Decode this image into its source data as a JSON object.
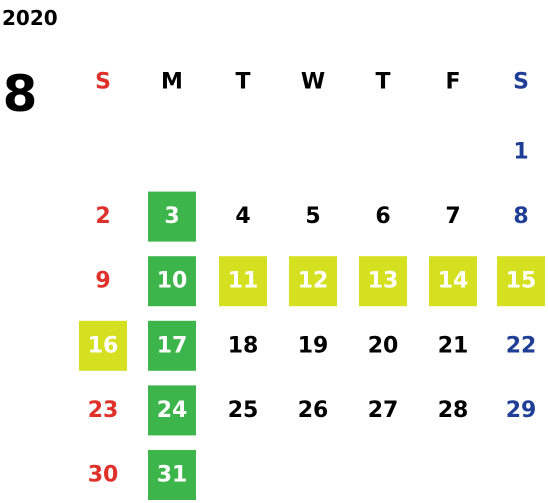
{
  "year": "2020",
  "month": "8",
  "weekdays": [
    "S",
    "M",
    "T",
    "W",
    "T",
    "F",
    "S"
  ],
  "weekday_colors": [
    "#e0302a",
    "#000000",
    "#000000",
    "#000000",
    "#000000",
    "#000000",
    "#1f3e96"
  ],
  "day_colors": [
    "#e0302a",
    "#000000",
    "#000000",
    "#000000",
    "#000000",
    "#000000",
    "#1f3e96"
  ],
  "highlight_text_color": "#ffffff",
  "weeks": [
    [
      null,
      null,
      null,
      null,
      null,
      null,
      {
        "day": 1
      }
    ],
    [
      {
        "day": 2
      },
      {
        "day": 3,
        "fill": "#3cb54a"
      },
      {
        "day": 4
      },
      {
        "day": 5
      },
      {
        "day": 6
      },
      {
        "day": 7
      },
      {
        "day": 8
      }
    ],
    [
      {
        "day": 9
      },
      {
        "day": 10,
        "fill": "#3cb54a"
      },
      {
        "day": 11,
        "fill": "#d5e021"
      },
      {
        "day": 12,
        "fill": "#d5e021"
      },
      {
        "day": 13,
        "fill": "#d5e021"
      },
      {
        "day": 14,
        "fill": "#d5e021"
      },
      {
        "day": 15,
        "fill": "#d5e021"
      }
    ],
    [
      {
        "day": 16,
        "fill": "#d5e021"
      },
      {
        "day": 17,
        "fill": "#3cb54a"
      },
      {
        "day": 18
      },
      {
        "day": 19
      },
      {
        "day": 20
      },
      {
        "day": 21
      },
      {
        "day": 22
      }
    ],
    [
      {
        "day": 23
      },
      {
        "day": 24,
        "fill": "#3cb54a"
      },
      {
        "day": 25
      },
      {
        "day": 26
      },
      {
        "day": 27
      },
      {
        "day": 28
      },
      {
        "day": 29
      }
    ],
    [
      {
        "day": 30
      },
      {
        "day": 31,
        "fill": "#3cb54a"
      },
      null,
      null,
      null,
      null,
      null
    ]
  ]
}
